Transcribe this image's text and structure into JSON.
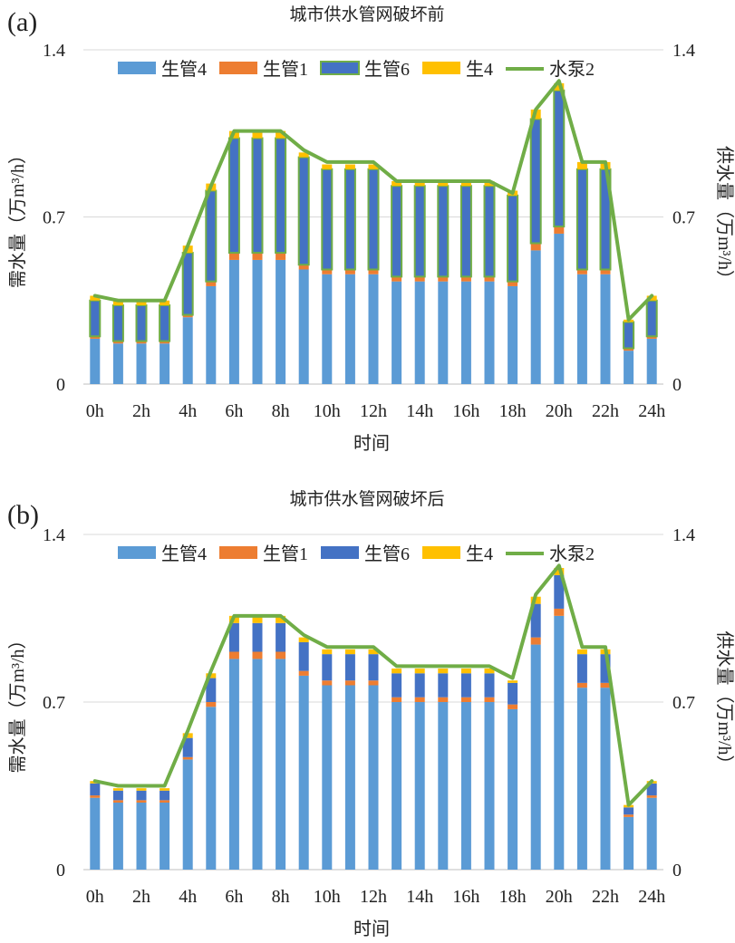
{
  "chart_data": [
    {
      "panel": "(a)",
      "type": "bar",
      "stacked": true,
      "title": "城市供水管网破坏前",
      "xlabel": "时间",
      "ylabel_left": "需水量（万m³/h）",
      "ylabel_right": "供水量（万m³/h）",
      "ylim": [
        0,
        1.4
      ],
      "yticks": [
        "0",
        "0.7",
        "1.4"
      ],
      "grid": true,
      "legend_position": "top",
      "x_tick_labels": [
        "0h",
        "2h",
        "4h",
        "6h",
        "8h",
        "10h",
        "12h",
        "14h",
        "16h",
        "18h",
        "20h",
        "22h",
        "24h"
      ],
      "categories": [
        "0h",
        "1h",
        "2h",
        "3h",
        "4h",
        "5h",
        "6h",
        "7h",
        "8h",
        "9h",
        "10h",
        "11h",
        "12h",
        "13h",
        "14h",
        "15h",
        "16h",
        "17h",
        "18h",
        "19h",
        "20h",
        "21h",
        "22h",
        "23h",
        "24h"
      ],
      "series": [
        {
          "name": "生管4",
          "kind": "bar",
          "color": "#5b9bd5",
          "border": "",
          "values": [
            0.19,
            0.17,
            0.17,
            0.17,
            0.28,
            0.41,
            0.52,
            0.52,
            0.52,
            0.48,
            0.46,
            0.46,
            0.46,
            0.43,
            0.43,
            0.43,
            0.43,
            0.43,
            0.41,
            0.56,
            0.63,
            0.46,
            0.46,
            0.14,
            0.19
          ]
        },
        {
          "name": "生管1",
          "kind": "bar",
          "color": "#ed7d31",
          "border": "",
          "values": [
            0.01,
            0.01,
            0.01,
            0.01,
            0.01,
            0.02,
            0.03,
            0.03,
            0.03,
            0.02,
            0.02,
            0.02,
            0.02,
            0.02,
            0.02,
            0.02,
            0.02,
            0.02,
            0.02,
            0.03,
            0.03,
            0.02,
            0.02,
            0.01,
            0.01
          ]
        },
        {
          "name": "生管6",
          "kind": "bar",
          "color": "#4472c4",
          "border": "#70ad47",
          "values": [
            0.15,
            0.15,
            0.15,
            0.15,
            0.26,
            0.38,
            0.48,
            0.48,
            0.48,
            0.45,
            0.42,
            0.42,
            0.42,
            0.38,
            0.38,
            0.38,
            0.38,
            0.38,
            0.36,
            0.52,
            0.57,
            0.42,
            0.42,
            0.11,
            0.15
          ]
        },
        {
          "name": "生4",
          "kind": "bar",
          "color": "#ffc000",
          "border": "",
          "values": [
            0.02,
            0.02,
            0.02,
            0.02,
            0.03,
            0.03,
            0.03,
            0.03,
            0.03,
            0.02,
            0.02,
            0.02,
            0.02,
            0.02,
            0.02,
            0.02,
            0.02,
            0.02,
            0.02,
            0.04,
            0.03,
            0.03,
            0.03,
            0.01,
            0.02
          ]
        },
        {
          "name": "水泵2",
          "kind": "line",
          "color": "#70ad47",
          "border": "",
          "values": [
            0.37,
            0.35,
            0.35,
            0.35,
            0.58,
            0.83,
            1.06,
            1.06,
            1.06,
            0.98,
            0.93,
            0.93,
            0.93,
            0.85,
            0.85,
            0.85,
            0.85,
            0.85,
            0.8,
            1.15,
            1.27,
            0.93,
            0.93,
            0.27,
            0.37
          ]
        }
      ]
    },
    {
      "panel": "(b)",
      "type": "bar",
      "stacked": true,
      "title": "城市供水管网破坏后",
      "xlabel": "时间",
      "ylabel_left": "需水量（万m³/h）",
      "ylabel_right": "供水量（万m³/h）",
      "ylim": [
        0,
        1.4
      ],
      "yticks": [
        "0",
        "0.7",
        "1.4"
      ],
      "grid": true,
      "legend_position": "top",
      "x_tick_labels": [
        "0h",
        "2h",
        "4h",
        "6h",
        "8h",
        "10h",
        "12h",
        "14h",
        "16h",
        "18h",
        "20h",
        "22h",
        "24h"
      ],
      "categories": [
        "0h",
        "1h",
        "2h",
        "3h",
        "4h",
        "5h",
        "6h",
        "7h",
        "8h",
        "9h",
        "10h",
        "11h",
        "12h",
        "13h",
        "14h",
        "15h",
        "16h",
        "17h",
        "18h",
        "19h",
        "20h",
        "21h",
        "22h",
        "23h",
        "24h"
      ],
      "series": [
        {
          "name": "生管4",
          "kind": "bar",
          "color": "#5b9bd5",
          "border": "",
          "values": [
            0.3,
            0.28,
            0.28,
            0.28,
            0.46,
            0.68,
            0.88,
            0.88,
            0.88,
            0.81,
            0.77,
            0.77,
            0.77,
            0.7,
            0.7,
            0.7,
            0.7,
            0.7,
            0.67,
            0.94,
            1.06,
            0.76,
            0.76,
            0.22,
            0.3
          ]
        },
        {
          "name": "生管1",
          "kind": "bar",
          "color": "#ed7d31",
          "border": "",
          "values": [
            0.01,
            0.01,
            0.01,
            0.01,
            0.01,
            0.02,
            0.03,
            0.03,
            0.03,
            0.02,
            0.02,
            0.02,
            0.02,
            0.02,
            0.02,
            0.02,
            0.02,
            0.02,
            0.02,
            0.03,
            0.03,
            0.02,
            0.02,
            0.01,
            0.01
          ]
        },
        {
          "name": "生管6",
          "kind": "bar",
          "color": "#4472c4",
          "border": "",
          "values": [
            0.05,
            0.04,
            0.04,
            0.04,
            0.08,
            0.1,
            0.12,
            0.12,
            0.12,
            0.12,
            0.11,
            0.11,
            0.11,
            0.1,
            0.1,
            0.1,
            0.1,
            0.1,
            0.09,
            0.14,
            0.14,
            0.12,
            0.12,
            0.03,
            0.05
          ]
        },
        {
          "name": "生4",
          "kind": "bar",
          "color": "#ffc000",
          "border": "",
          "values": [
            0.01,
            0.01,
            0.01,
            0.01,
            0.02,
            0.02,
            0.03,
            0.03,
            0.03,
            0.02,
            0.02,
            0.02,
            0.02,
            0.02,
            0.02,
            0.02,
            0.02,
            0.02,
            0.01,
            0.03,
            0.03,
            0.02,
            0.02,
            0.01,
            0.01
          ]
        },
        {
          "name": "水泵2",
          "kind": "line",
          "color": "#70ad47",
          "border": "",
          "values": [
            0.37,
            0.35,
            0.35,
            0.35,
            0.58,
            0.83,
            1.06,
            1.06,
            1.06,
            0.98,
            0.93,
            0.93,
            0.93,
            0.85,
            0.85,
            0.85,
            0.85,
            0.85,
            0.8,
            1.15,
            1.27,
            0.93,
            0.93,
            0.27,
            0.37
          ]
        }
      ]
    }
  ]
}
